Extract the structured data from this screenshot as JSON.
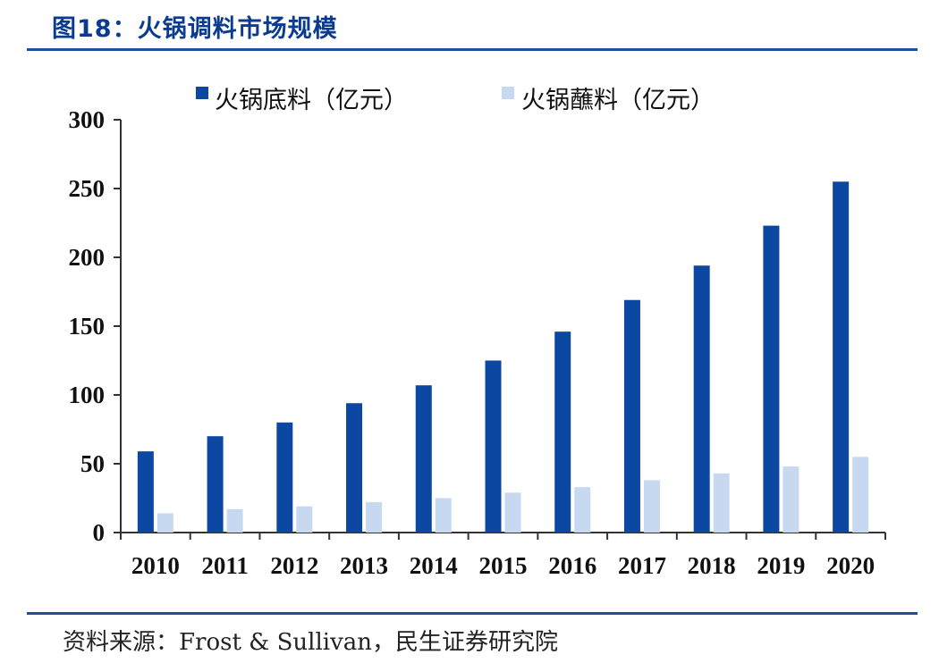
{
  "figure": {
    "title": "图18：火锅调料市场规模",
    "source": "资料来源：Frost & Sullivan，民生证券研究院"
  },
  "chart_data": {
    "type": "bar",
    "title": "",
    "xlabel": "",
    "ylabel": "",
    "categories": [
      "2010",
      "2011",
      "2012",
      "2013",
      "2014",
      "2015",
      "2016",
      "2017",
      "2018",
      "2019",
      "2020"
    ],
    "series": [
      {
        "name": "火锅底料（亿元）",
        "color": "#0c47a1",
        "values": [
          59,
          70,
          80,
          94,
          107,
          125,
          146,
          169,
          194,
          223,
          255
        ]
      },
      {
        "name": "火锅蘸料（亿元）",
        "color": "#c6d9f1",
        "values": [
          14,
          17,
          19,
          22,
          25,
          29,
          33,
          38,
          43,
          48,
          55
        ]
      }
    ],
    "ylim": [
      0,
      300
    ],
    "yticks": [
      0,
      50,
      100,
      150,
      200,
      250,
      300
    ],
    "grid": false,
    "legend_position": "top-center"
  }
}
